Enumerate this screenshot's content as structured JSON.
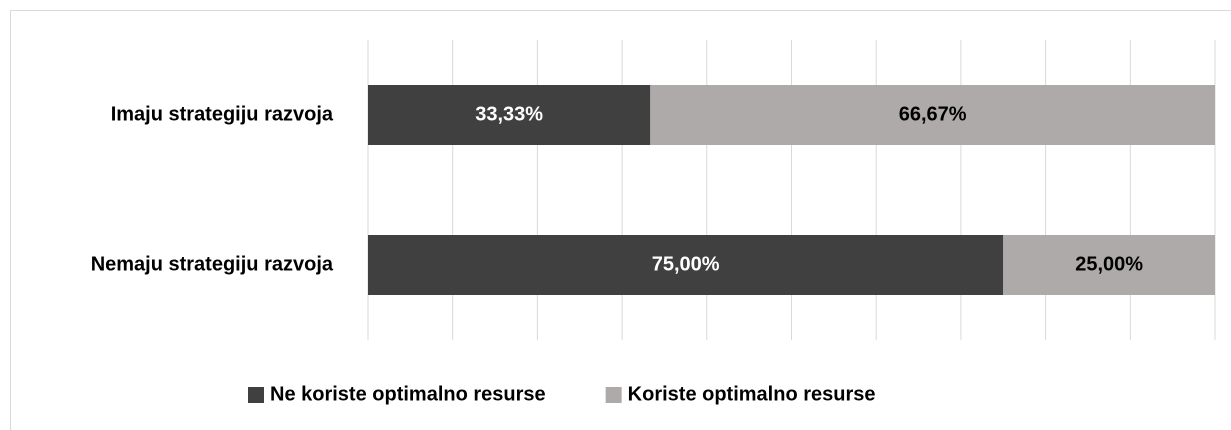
{
  "chart_data": {
    "type": "stacked_barh",
    "categories": [
      "Imaju strategiju razvoja",
      "Nemaju strategiju razvoja"
    ],
    "series": [
      {
        "name": "Ne koriste optimalno resurse",
        "color": "#404040",
        "label_color": "#ffffff",
        "values": [
          33.33,
          75.0
        ],
        "value_labels": [
          "33,33%",
          "75,00%"
        ]
      },
      {
        "name": "Koriste optimalno resurse",
        "color": "#aeaaaa",
        "label_color": "#000000",
        "values": [
          66.67,
          25.0
        ],
        "value_labels": [
          "66,67%",
          "25,00%"
        ]
      }
    ],
    "xlim": [
      0,
      100
    ],
    "xticks": [
      0,
      10,
      20,
      30,
      40,
      50,
      60,
      70,
      80,
      90,
      100
    ],
    "grid": true,
    "legend": "bottom"
  }
}
